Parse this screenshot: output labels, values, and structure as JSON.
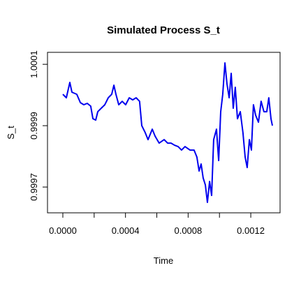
{
  "chart_data": {
    "type": "line",
    "title": "Simulated Process S_t",
    "xlabel": "Time",
    "ylabel": "S_t",
    "x": [
      0,
      2.23e-05,
      4.46e-05,
      5.8e-05,
      8.9e-05,
      0.000112,
      0.000134,
      0.000156,
      0.000178,
      0.000192,
      0.00021,
      0.000223,
      0.000245,
      0.000268,
      0.00029,
      0.000312,
      0.000326,
      0.000339,
      0.000357,
      0.000379,
      0.000401,
      0.000424,
      0.000446,
      0.000468,
      0.00049,
      0.000504,
      0.000526,
      0.000544,
      0.000571,
      0.000589,
      0.000615,
      0.000647,
      0.000669,
      0.000691,
      0.000713,
      0.000736,
      0.000758,
      0.00078,
      0.000812,
      0.000838,
      0.000856,
      0.00087,
      0.000883,
      0.000896,
      0.00091,
      0.000923,
      0.000937,
      0.00095,
      0.000963,
      0.000981,
      0.000995,
      0.001008,
      0.001021,
      0.001035,
      0.001048,
      0.001062,
      0.001075,
      0.001088,
      0.001101,
      0.001115,
      0.001133,
      0.00115,
      0.001164,
      0.001177,
      0.001191,
      0.001204,
      0.001217,
      0.001231,
      0.001249,
      0.001266,
      0.001284,
      0.001302,
      0.001315,
      0.001329,
      0.001338
    ],
    "series": [
      {
        "name": "S_t",
        "color": "#0000ee",
        "values": [
          1.0000023,
          0.9999909,
          1.0000409,
          1.0000091,
          1.0000023,
          0.999975,
          0.9999682,
          0.9999727,
          0.9999636,
          0.9999227,
          0.9999182,
          0.9999455,
          0.9999568,
          0.9999682,
          0.9999909,
          1.0000023,
          1.0000318,
          1.0000023,
          0.9999682,
          0.9999795,
          0.9999682,
          0.9999909,
          0.9999841,
          0.9999909,
          0.9999795,
          0.9999,
          0.9998773,
          0.9998545,
          0.9998886,
          0.9998659,
          0.9998432,
          0.9998545,
          0.9998432,
          0.9998432,
          0.9998364,
          0.9998318,
          0.9998205,
          0.9998318,
          0.9998205,
          0.9998205,
          0.9997977,
          0.9997523,
          0.999775,
          0.9997295,
          0.9997068,
          0.99965,
          0.9997182,
          0.9996727,
          0.9998545,
          0.9998886,
          0.9997864,
          0.9999455,
          1.0000023,
          1.0001045,
          1.0000364,
          0.9999909,
          1.0000705,
          0.9999568,
          1.000025,
          0.9999227,
          0.9999455,
          0.9998773,
          0.9997977,
          0.9997636,
          0.9998545,
          0.9998205,
          0.9999682,
          0.9999341,
          0.9999114,
          0.9999795,
          0.9999455,
          0.9999455,
          0.9999909,
          0.9999227,
          0.9999
        ]
      }
    ],
    "xlim": [
      -9.8e-05,
      0.001387
    ],
    "xticks": [
      {
        "value": 0,
        "label": "0.0000"
      },
      {
        "value": 0.0002,
        "label": null
      },
      {
        "value": 0.0004,
        "label": "0.0004"
      },
      {
        "value": 0.0006,
        "label": null
      },
      {
        "value": 0.0008,
        "label": "0.0008"
      },
      {
        "value": 0.001,
        "label": null
      },
      {
        "value": 0.0012,
        "label": "0.0012"
      }
    ],
    "ylim": [
      0.999616,
      1.000139
    ],
    "yticks": [
      0.9997,
      0.9999,
      1.0001
    ],
    "grid": false
  }
}
